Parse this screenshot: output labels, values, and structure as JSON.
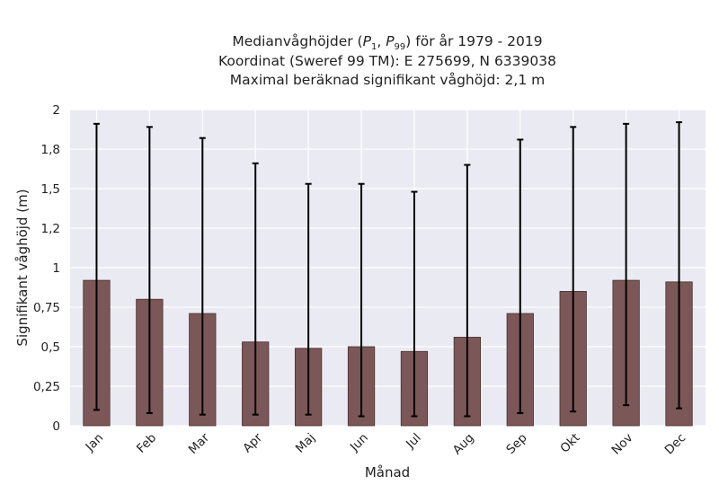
{
  "chart_data": {
    "type": "bar",
    "title_lines": [
      "Koordinat (Sweref 99 TM): E 275699, N 6339038",
      "Maximal beräknad signifikant våghöjd: 2,1 m"
    ],
    "title_first": {
      "prefix": "Medianvåghöjder (",
      "p1_base": "P",
      "p1_sub": "1",
      "sep": ", ",
      "p99_base": "P",
      "p99_sub": "99",
      "suffix": ") för år 1979 - 2019"
    },
    "xlabel": "Månad",
    "ylabel": "Signifikant våghöjd (m)",
    "ylim": [
      0,
      2
    ],
    "yticks": [
      {
        "value": 0,
        "label": "0"
      },
      {
        "value": 0.25,
        "label": "0,25"
      },
      {
        "value": 0.5,
        "label": "0,5"
      },
      {
        "value": 0.75,
        "label": "0,75"
      },
      {
        "value": 1,
        "label": "1"
      },
      {
        "value": 1.25,
        "label": "1,2"
      },
      {
        "value": 1.5,
        "label": "1,5"
      },
      {
        "value": 1.75,
        "label": "1,8"
      },
      {
        "value": 2,
        "label": "2"
      }
    ],
    "categories": [
      "Jan",
      "Feb",
      "Mar",
      "Apr",
      "Maj",
      "Jun",
      "Jul",
      "Aug",
      "Sep",
      "Okt",
      "Nov",
      "Dec"
    ],
    "values": [
      0.92,
      0.8,
      0.71,
      0.53,
      0.49,
      0.5,
      0.47,
      0.56,
      0.71,
      0.85,
      0.92,
      0.91
    ],
    "p1": [
      0.1,
      0.08,
      0.07,
      0.07,
      0.07,
      0.06,
      0.06,
      0.06,
      0.08,
      0.09,
      0.13,
      0.11
    ],
    "p99": [
      1.91,
      1.89,
      1.82,
      1.66,
      1.53,
      1.53,
      1.48,
      1.65,
      1.81,
      1.89,
      1.91,
      1.92
    ],
    "bar_color": "#7b5757",
    "bar_edge": "#4a3030",
    "error_color": "#000000",
    "grid": true,
    "background": "#eaeaf2",
    "grid_color": "#ffffff"
  }
}
